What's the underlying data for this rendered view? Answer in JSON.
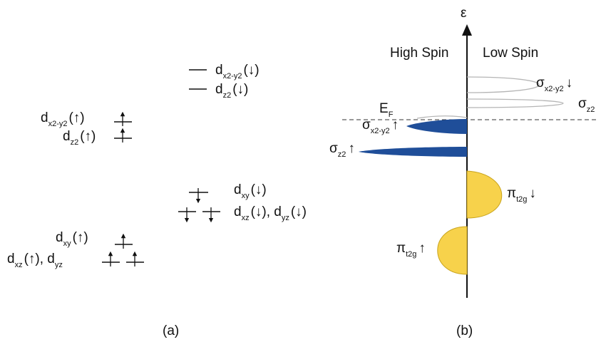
{
  "panel_a": {
    "caption": "(a)",
    "up_levels": [
      {
        "main": "d",
        "sub": "x2-y2",
        "tail": "(↑)"
      },
      {
        "main": "d",
        "sub": "z2",
        "tail": "(↑)"
      },
      {
        "main": "d",
        "sub": "xy",
        "tail": "(↑)"
      }
    ],
    "up_bottom": {
      "main1": "d",
      "sub1": "xz",
      "mid": "(↑),  d",
      "sub2": "yz"
    },
    "down_levels": [
      {
        "main": "d",
        "sub": "x2-y2",
        "tail": "(↓)"
      },
      {
        "main": "d",
        "sub": "z2",
        "tail": "(↓)"
      },
      {
        "main": "d",
        "sub": "xy",
        "tail": "(↓)"
      }
    ],
    "down_bottom": {
      "main1": "d",
      "sub1": "xz",
      "mid": "(↓),  d",
      "sub2": "yz",
      "tail": "(↓)"
    }
  },
  "panel_b": {
    "caption": "(b)",
    "axis_label": "ε",
    "left_heading": "High Spin",
    "right_heading": "Low Spin",
    "fermi": {
      "main": "E",
      "sub": "F"
    },
    "bands": {
      "sigma_x2y2_down": {
        "main": "σ",
        "sub": "x2-y2",
        "tail": "↓"
      },
      "sigma_z2_right": {
        "main": "σ",
        "sub": "z2"
      },
      "sigma_x2y2_up": {
        "main": "σ",
        "sub": "x2-y2",
        "tail": "↑"
      },
      "sigma_z2_up": {
        "main": "σ",
        "sub": "z2",
        "tail": "↑"
      },
      "pi_t2g_down": {
        "main": "π",
        "sub": "t2g",
        "tail": "↓"
      },
      "pi_t2g_up": {
        "main": "π",
        "sub": "t2g",
        "tail": "↑"
      }
    },
    "colors": {
      "blue": "#1f4e99",
      "yellow": "#f7d24b",
      "outline": "#b5b5b5"
    }
  }
}
